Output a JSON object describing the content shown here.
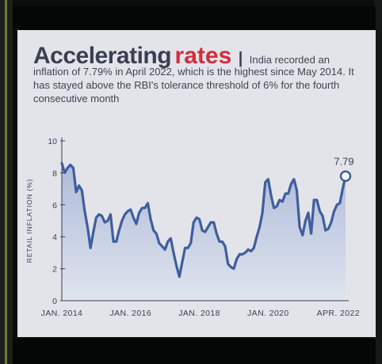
{
  "headline": {
    "title_main": "Accelerating",
    "title_accent": "rates",
    "separator": "|",
    "subtitle_first": "India recorded an",
    "subtitle_rest": "inflation of 7.79% in April 2022, which is the highest since May 2014. It has stayed above the RBI's tolerance threshold of 6% for the fourth consecutive month"
  },
  "colors": {
    "line": "#3f5e9e",
    "area_top": "#aebbd8",
    "area_bottom": "#dfe4ef",
    "accent": "#d42c3b",
    "text": "#3a3f52",
    "card": "#e3e4ea"
  },
  "chart_data": {
    "type": "area",
    "title": "Accelerating rates",
    "xlabel": "",
    "ylabel": "RETAIL INFLATION (%)",
    "ylim": [
      0,
      10
    ],
    "yticks": [
      0,
      2,
      4,
      6,
      8,
      10
    ],
    "xticks": [
      "JAN. 2014",
      "JAN. 2016",
      "JAN. 2018",
      "JAN. 2020",
      "APR. 2022"
    ],
    "grid": false,
    "legend": "none",
    "annotation": {
      "label": "7.79",
      "x": "2022-04",
      "y": 7.79
    },
    "series": [
      {
        "x": [
          "2014-01",
          "2014-02",
          "2014-03",
          "2014-04",
          "2014-05",
          "2014-06",
          "2014-07",
          "2014-08",
          "2014-09",
          "2014-10",
          "2014-11",
          "2014-12",
          "2015-01",
          "2015-02",
          "2015-03",
          "2015-04",
          "2015-05",
          "2015-06",
          "2015-07",
          "2015-08",
          "2015-09",
          "2015-10",
          "2015-11",
          "2015-12",
          "2016-01",
          "2016-02",
          "2016-03",
          "2016-04",
          "2016-05",
          "2016-06",
          "2016-07",
          "2016-08",
          "2016-09",
          "2016-10",
          "2016-11",
          "2016-12",
          "2017-01",
          "2017-02",
          "2017-03",
          "2017-04",
          "2017-05",
          "2017-06",
          "2017-07",
          "2017-08",
          "2017-09",
          "2017-10",
          "2017-11",
          "2017-12",
          "2018-01",
          "2018-02",
          "2018-03",
          "2018-04",
          "2018-05",
          "2018-06",
          "2018-07",
          "2018-08",
          "2018-09",
          "2018-10",
          "2018-11",
          "2018-12",
          "2019-01",
          "2019-02",
          "2019-03",
          "2019-04",
          "2019-05",
          "2019-06",
          "2019-07",
          "2019-08",
          "2019-09",
          "2019-10",
          "2019-11",
          "2019-12",
          "2020-01",
          "2020-02",
          "2020-03",
          "2020-04",
          "2020-05",
          "2020-06",
          "2020-07",
          "2020-08",
          "2020-09",
          "2020-10",
          "2020-11",
          "2020-12",
          "2021-01",
          "2021-02",
          "2021-03",
          "2021-04",
          "2021-05",
          "2021-06",
          "2021-07",
          "2021-08",
          "2021-09",
          "2021-10",
          "2021-11",
          "2021-12",
          "2022-01",
          "2022-02",
          "2022-03",
          "2022-04"
        ],
        "values": [
          8.6,
          8.0,
          8.3,
          8.5,
          8.3,
          6.8,
          7.2,
          6.9,
          5.6,
          4.6,
          3.3,
          4.3,
          5.2,
          5.4,
          5.3,
          4.9,
          5.0,
          5.4,
          3.7,
          3.7,
          4.4,
          5.0,
          5.4,
          5.6,
          5.7,
          5.2,
          4.8,
          5.5,
          5.8,
          5.8,
          6.1,
          5.1,
          4.4,
          4.2,
          3.6,
          3.4,
          3.2,
          3.7,
          3.9,
          3.0,
          2.2,
          1.5,
          2.4,
          3.3,
          3.3,
          3.6,
          4.9,
          5.2,
          5.1,
          4.4,
          4.3,
          4.6,
          4.9,
          4.9,
          4.2,
          3.7,
          3.7,
          3.4,
          2.3,
          2.1,
          2.0,
          2.6,
          2.9,
          2.9,
          3.0,
          3.2,
          3.1,
          3.3,
          4.0,
          4.6,
          5.5,
          7.4,
          7.6,
          6.6,
          5.8,
          5.9,
          6.3,
          6.2,
          6.7,
          6.7,
          7.3,
          7.6,
          6.9,
          4.6,
          4.1,
          5.0,
          5.5,
          4.2,
          6.3,
          6.3,
          5.6,
          5.3,
          4.4,
          4.5,
          4.9,
          5.6,
          6.0,
          6.1,
          7.0,
          7.79
        ]
      }
    ]
  }
}
